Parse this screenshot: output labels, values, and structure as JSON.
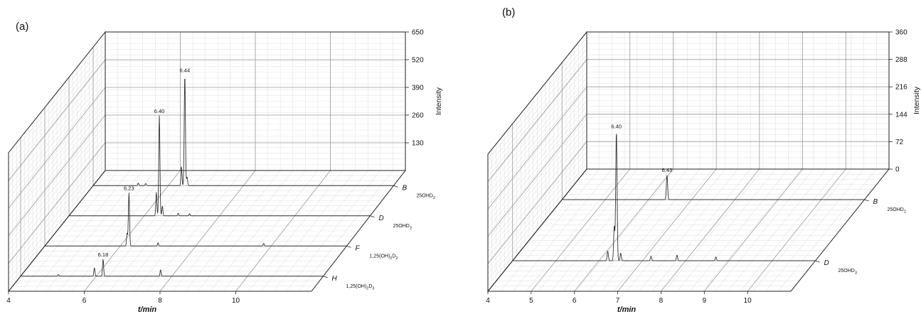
{
  "chart_data": [
    {
      "panel_label": "(a)",
      "type": "line",
      "view": "3d-waterfall",
      "xlabel": "t/min",
      "zlabel": "Intensity",
      "xlim": [
        4,
        12
      ],
      "x_ticks": [
        4,
        6,
        8,
        10
      ],
      "zlim": [
        0,
        650
      ],
      "z_ticks": [
        130,
        260,
        390,
        520,
        650
      ],
      "series": [
        {
          "row_label": "B",
          "compound": "25OHD",
          "sub": "2",
          "peaks": [
            {
              "x": 6.44,
              "y": 520,
              "label": "6.44"
            },
            {
              "x": 6.35,
              "y": 90
            },
            {
              "x": 6.5,
              "y": 40
            },
            {
              "x": 5.2,
              "y": 12
            },
            {
              "x": 5.4,
              "y": 10
            }
          ]
        },
        {
          "row_label": "D",
          "compound": "25OHD",
          "sub": "3",
          "peaks": [
            {
              "x": 6.4,
              "y": 470,
              "label": "6.40"
            },
            {
              "x": 6.32,
              "y": 110
            },
            {
              "x": 6.48,
              "y": 45
            },
            {
              "x": 6.9,
              "y": 12
            },
            {
              "x": 7.2,
              "y": 10
            }
          ]
        },
        {
          "row_label": "F",
          "compound": "1,25(OH)",
          "sub": "2",
          "suffix": "D",
          "sub2": "2",
          "peaks": [
            {
              "x": 6.23,
              "y": 250,
              "label": "6.23"
            },
            {
              "x": 6.18,
              "y": 60
            },
            {
              "x": 7.0,
              "y": 15
            },
            {
              "x": 9.8,
              "y": 12
            }
          ]
        },
        {
          "row_label": "H",
          "compound": "1,25(OH)",
          "sub": "2",
          "suffix": "D",
          "sub2": "3",
          "peaks": [
            {
              "x": 6.18,
              "y": 80,
              "label": "6.18"
            },
            {
              "x": 5.95,
              "y": 40
            },
            {
              "x": 7.7,
              "y": 30
            },
            {
              "x": 5.0,
              "y": 8
            }
          ]
        }
      ]
    },
    {
      "panel_label": "(b)",
      "type": "line",
      "view": "3d-waterfall",
      "xlabel": "t/min",
      "zlabel": "Intensity",
      "xlim": [
        4,
        11
      ],
      "x_ticks": [
        4,
        5,
        6,
        7,
        8,
        9,
        10
      ],
      "zlim": [
        0,
        360
      ],
      "z_ticks": [
        0,
        72,
        144,
        216,
        288,
        360
      ],
      "series": [
        {
          "row_label": "B",
          "compound": "25OHD",
          "sub": "2",
          "peaks": [
            {
              "x": 6.43,
              "y": 65,
              "label": "6.43"
            }
          ]
        },
        {
          "row_label": "D",
          "compound": "25OHD",
          "sub": "3",
          "peaks": [
            {
              "x": 6.4,
              "y": 340,
              "label": "6.40"
            },
            {
              "x": 6.35,
              "y": 90
            },
            {
              "x": 6.2,
              "y": 25
            },
            {
              "x": 6.5,
              "y": 20
            },
            {
              "x": 7.2,
              "y": 12
            },
            {
              "x": 7.8,
              "y": 15
            },
            {
              "x": 8.7,
              "y": 10
            }
          ]
        }
      ]
    }
  ]
}
